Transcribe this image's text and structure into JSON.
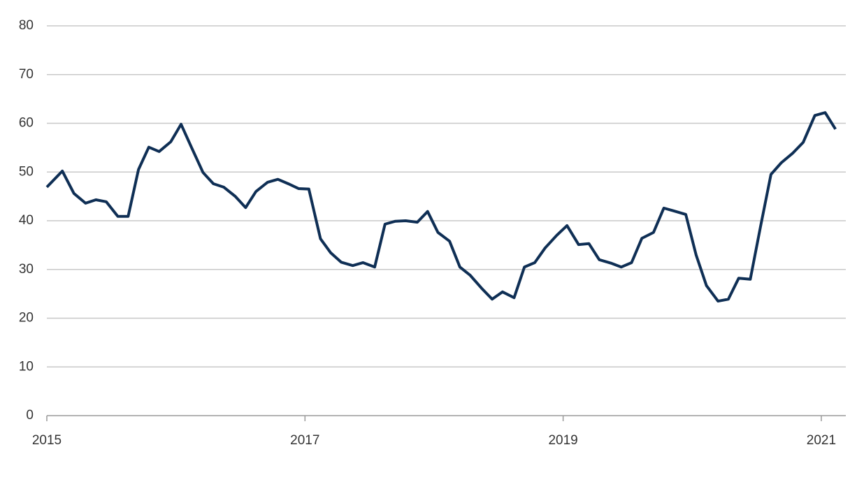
{
  "chart_data": {
    "type": "line",
    "x": [
      2015.0,
      2015.12,
      2015.21,
      2015.3,
      2015.38,
      2015.46,
      2015.55,
      2015.63,
      2015.71,
      2015.79,
      2015.87,
      2015.96,
      2016.04,
      2016.12,
      2016.21,
      2016.29,
      2016.37,
      2016.46,
      2016.54,
      2016.62,
      2016.71,
      2016.79,
      2016.87,
      2016.95,
      2017.03,
      2017.12,
      2017.2,
      2017.28,
      2017.37,
      2017.45,
      2017.54,
      2017.62,
      2017.7,
      2017.78,
      2017.87,
      2017.95,
      2018.03,
      2018.12,
      2018.2,
      2018.28,
      2018.37,
      2018.45,
      2018.53,
      2018.62,
      2018.7,
      2018.78,
      2018.86,
      2018.95,
      2019.03,
      2019.12,
      2019.2,
      2019.28,
      2019.37,
      2019.45,
      2019.53,
      2019.61,
      2019.7,
      2019.78,
      2019.86,
      2019.95,
      2020.03,
      2020.11,
      2020.2,
      2020.28,
      2020.36,
      2020.45,
      2020.53,
      2020.61,
      2020.69,
      2020.78,
      2020.86,
      2020.95,
      2021.03,
      2021.11
    ],
    "series": [
      {
        "color": "#0f2f55",
        "values": [
          46.9,
          50.2,
          45.6,
          43.6,
          44.3,
          43.9,
          40.9,
          40.9,
          50.5,
          55.1,
          54.2,
          56.2,
          59.8,
          55.1,
          49.9,
          47.6,
          46.9,
          45.0,
          42.7,
          46.0,
          47.9,
          48.5,
          47.6,
          46.6,
          46.5,
          36.3,
          33.4,
          31.5,
          30.8,
          31.4,
          30.5,
          39.3,
          39.9,
          40.0,
          39.7,
          41.9,
          37.6,
          35.8,
          30.5,
          28.8,
          26.1,
          23.9,
          25.4,
          24.2,
          30.5,
          31.4,
          34.4,
          37.0,
          39.0,
          35.1,
          35.3,
          32.0,
          31.3,
          30.5,
          31.4,
          36.4,
          37.6,
          42.6,
          42.0,
          41.3,
          33.0,
          26.7,
          23.5,
          23.9,
          28.2,
          28.0,
          38.9,
          49.5,
          51.9,
          53.9,
          56.1,
          61.6,
          62.2,
          58.8
        ]
      }
    ],
    "xlim": [
      2015,
      2021.19
    ],
    "xticks": [
      2015,
      2017,
      2019,
      2021
    ],
    "ylim": [
      0,
      80
    ],
    "yticks": [
      0,
      10,
      20,
      30,
      40,
      50,
      60,
      70,
      80
    ],
    "grid": true
  }
}
